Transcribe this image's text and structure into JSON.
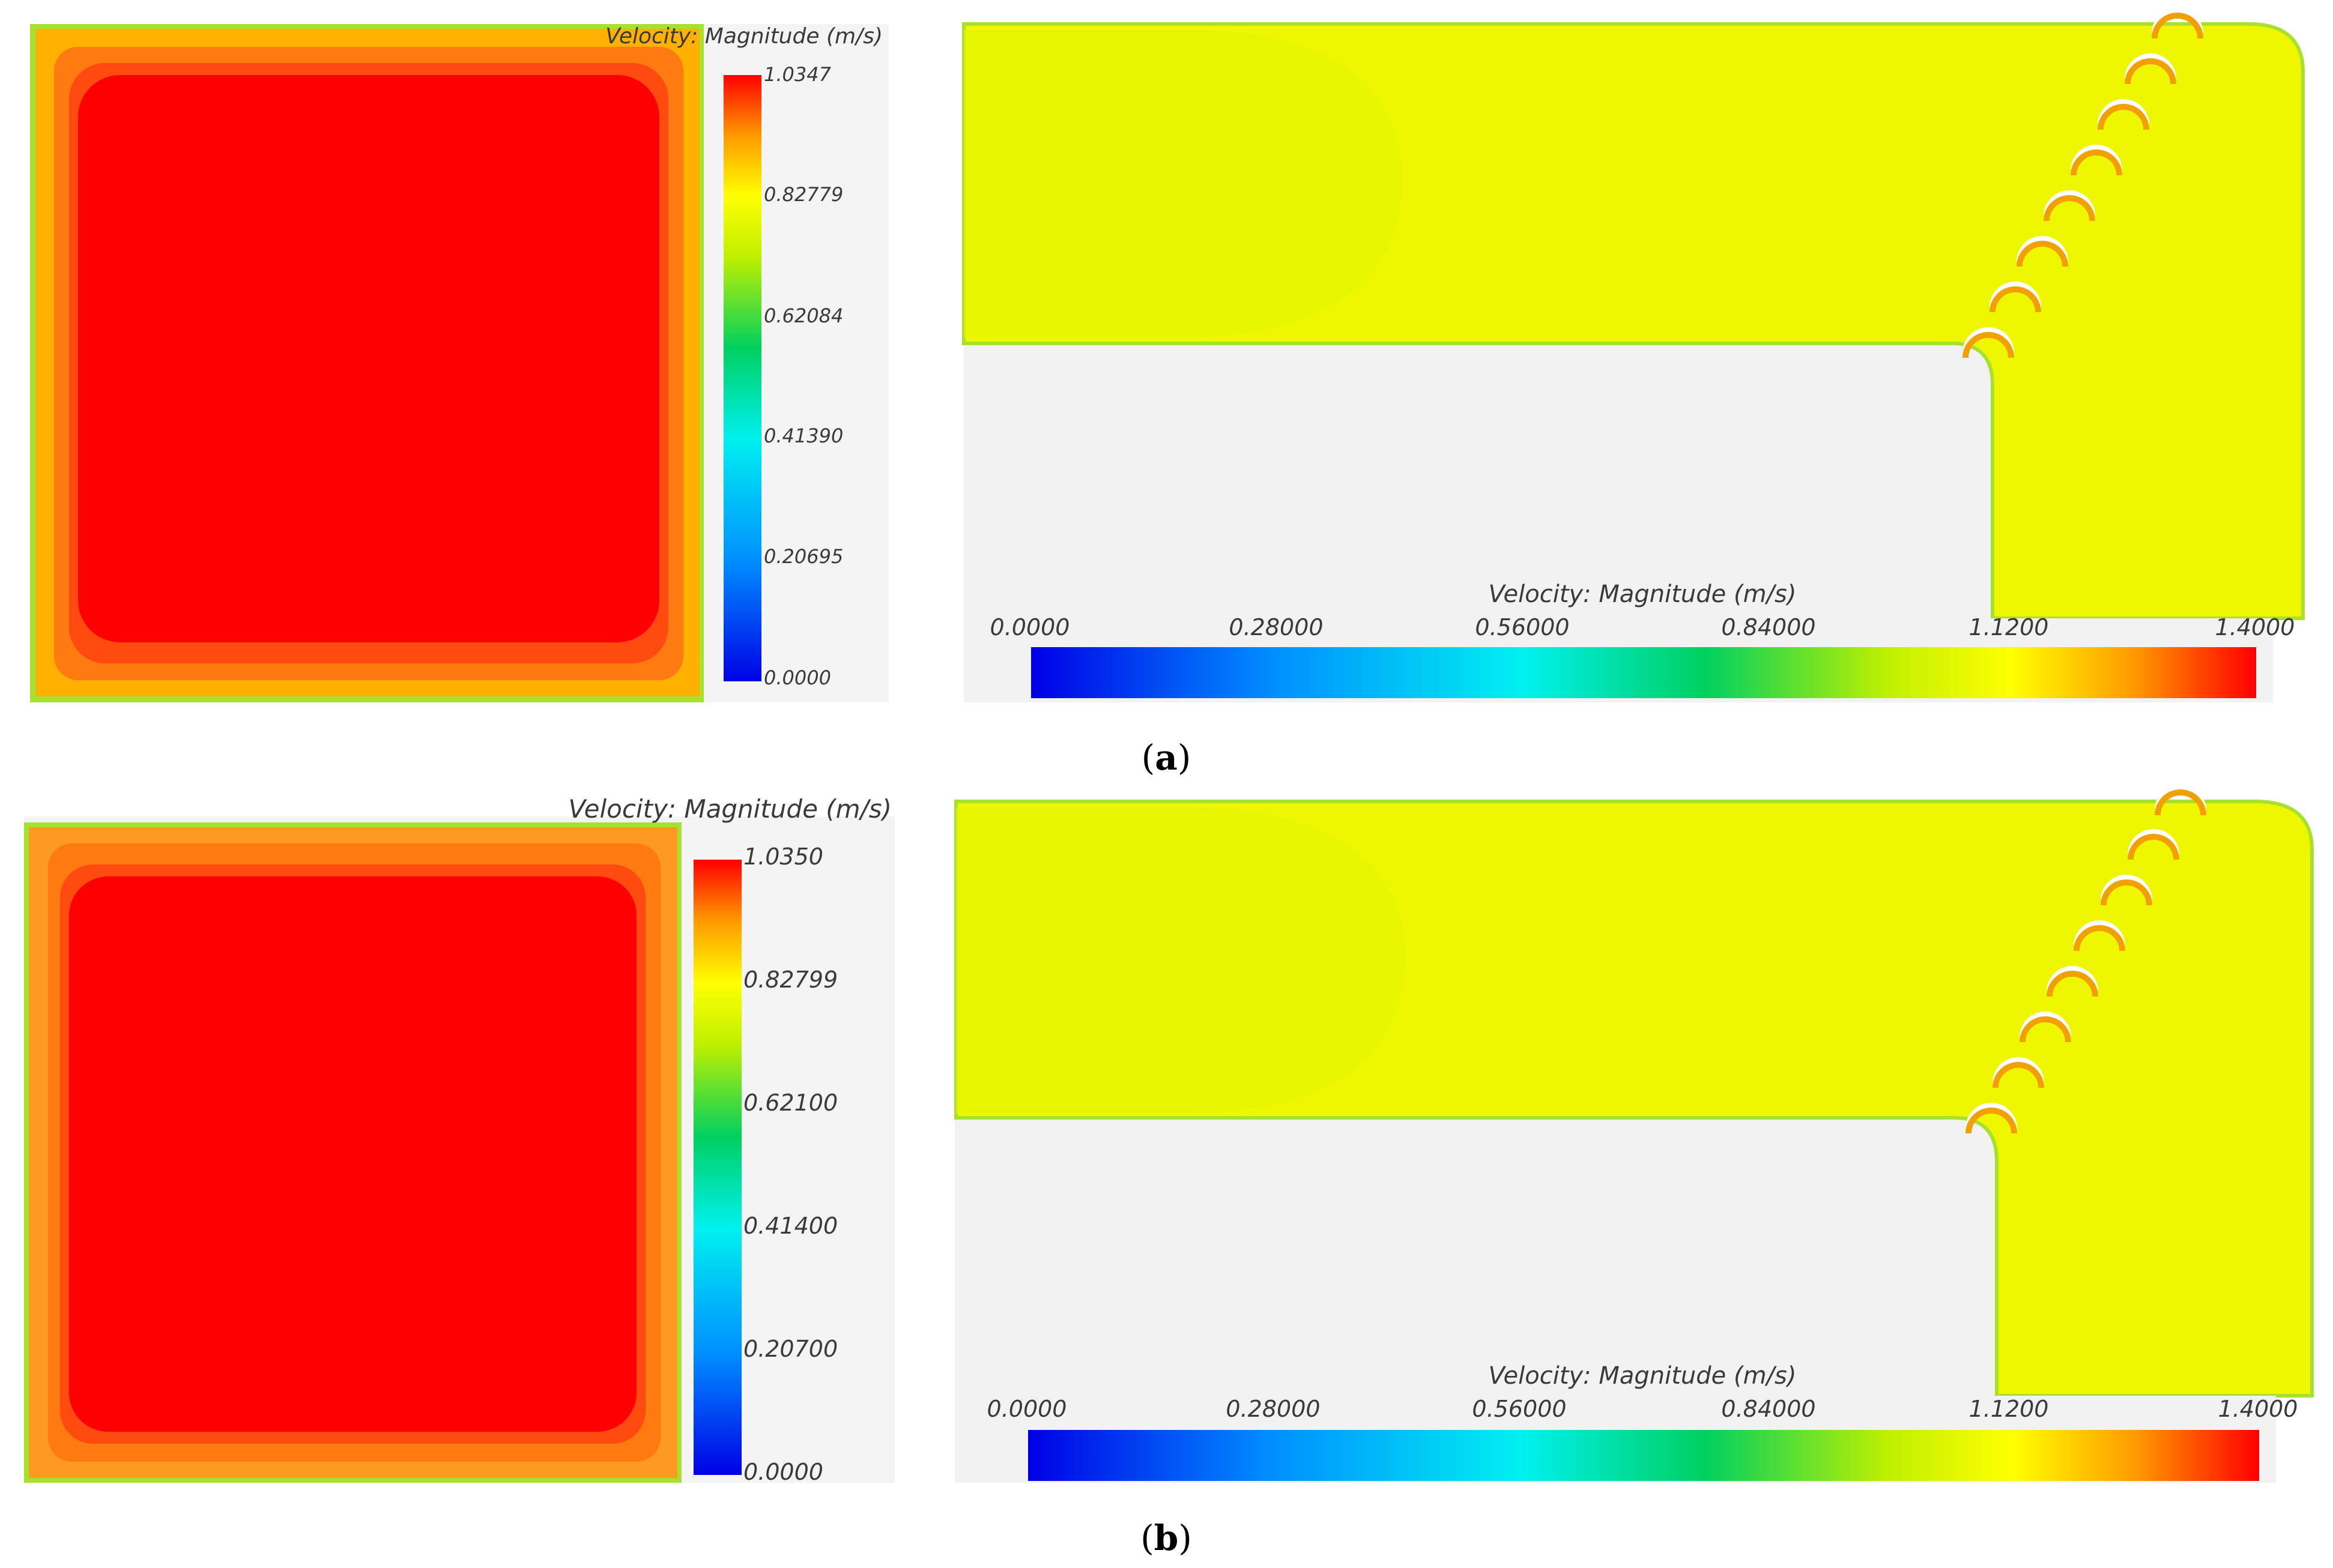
{
  "panels": [
    {
      "id": "a",
      "caption_open": "(",
      "caption_letter": "a",
      "caption_close": ")",
      "left": {
        "legend_title": "Velocity: Magnitude (m/s)",
        "ticks": [
          "1.0347",
          "0.82779",
          "0.62084",
          "0.41390",
          "0.20695",
          "0.0000"
        ]
      },
      "right": {
        "legend_title": "Velocity: Magnitude (m/s)",
        "ticks": [
          "0.0000",
          "0.28000",
          "0.56000",
          "0.84000",
          "1.1200",
          "1.4000"
        ]
      }
    },
    {
      "id": "b",
      "caption_open": "(",
      "caption_letter": "b",
      "caption_close": ")",
      "left": {
        "legend_title": "Velocity: Magnitude (m/s)",
        "ticks": [
          "1.0350",
          "0.82799",
          "0.62100",
          "0.41400",
          "0.20700",
          "0.0000"
        ]
      },
      "right": {
        "legend_title": "Velocity: Magnitude (m/s)",
        "ticks": [
          "0.0000",
          "0.28000",
          "0.56000",
          "0.84000",
          "1.1200",
          "1.4000"
        ]
      }
    }
  ],
  "colors": {
    "core": "#ff0000",
    "band_outer": "#ffb000",
    "band_mid": "#ff7a10",
    "band_inner": "#ff4a10",
    "edge_yellow": "#f6e800",
    "edge_green": "#a8e030",
    "flow_yellow": "#eef700",
    "flow_yellow_soft": "#e2f500",
    "wall": "#f2f2f2"
  }
}
